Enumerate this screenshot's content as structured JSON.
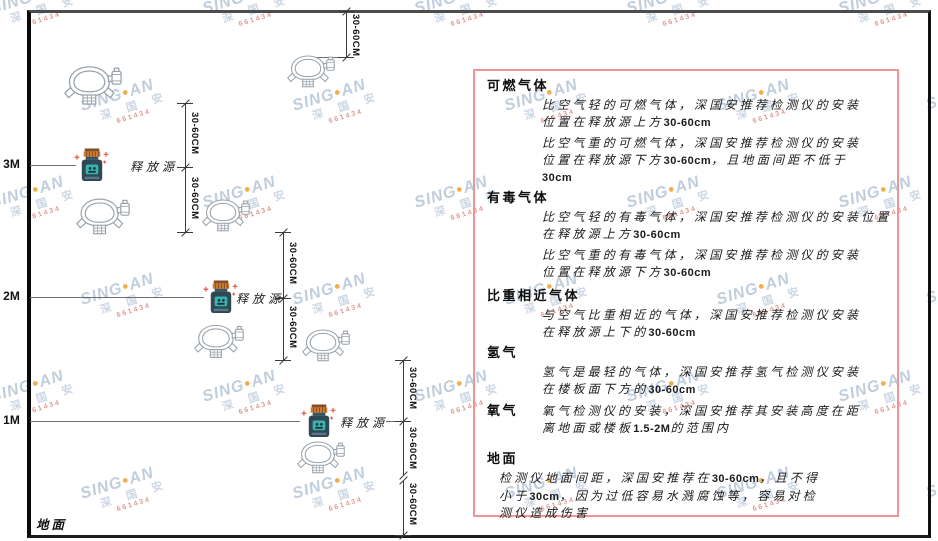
{
  "watermark": {
    "brand_prefix": "SING",
    "dot_icon": "●",
    "brand_suffix": "AN",
    "company_cn": "深 国 安",
    "code_line": "661434"
  },
  "diagram": {
    "ground_label": "地面",
    "release_source_label": "释放源",
    "dimension_label": "30-60CM",
    "height_labels": [
      "3M",
      "2M",
      "1M"
    ]
  },
  "panel": {
    "sections": [
      {
        "heading": "可燃气体",
        "paras": [
          [
            "比空气轻的可燃气体，深国安推荐检测仪的安装",
            "位置在释放源上方30-60cm"
          ],
          [
            "比空气重的可燃气体，深国安推荐检测仪的安装",
            "位置在释放源下方30-60cm，且地面间距不低于",
            "30cm"
          ]
        ]
      },
      {
        "heading": "有毒气体",
        "paras": [
          [
            "比空气轻的有毒气体，深国安推荐检测仪的安装位置",
            "在释放源上方30-60cm"
          ],
          [
            "比空气重的有毒气体，深国安推荐检测仪的安装",
            "位置在释放源下方30-60cm"
          ]
        ]
      },
      {
        "heading": "比重相近气体",
        "paras": [
          [
            "与空气比重相近的气体，深国安推荐检测仪安装",
            "在释放源上下的30-60cm"
          ]
        ]
      },
      {
        "heading": "氢气",
        "paras": [
          [
            "氢气是最轻的气体，深国安推荐氢气检测仪安装",
            "在楼板面下方的30-60cm"
          ]
        ]
      },
      {
        "heading": "氧气",
        "inline": true,
        "paras": [
          [
            "氧气检测仪的安装，深国安推荐其安装高度在距",
            "离地面或楼板1.5-2M的范围内"
          ]
        ]
      },
      {
        "heading": "地面",
        "ground": true,
        "paras": [
          [
            "检测仪地面间距，深国安推荐在30-60cm，且不得",
            "小于30cm，因为过低容易水溅腐蚀等，容易对检",
            "测仪造成伤害"
          ]
        ]
      }
    ]
  }
}
